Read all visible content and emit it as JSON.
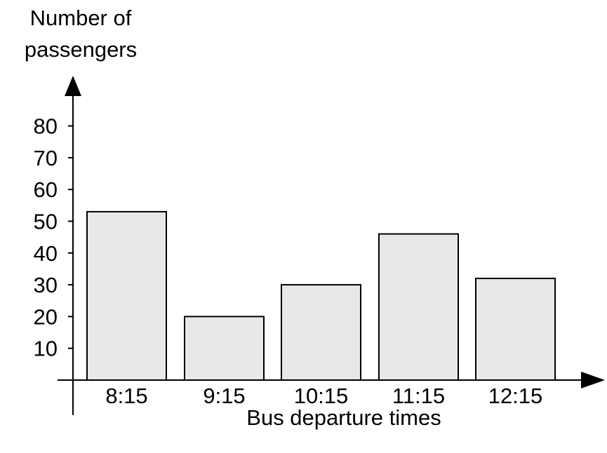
{
  "chart_data": {
    "type": "bar",
    "ylabel": [
      "Number of",
      "passengers"
    ],
    "xlabel": "Bus departure times",
    "categories": [
      "8:15",
      "9:15",
      "10:15",
      "11:15",
      "12:15"
    ],
    "values": [
      53,
      20,
      30,
      46,
      32
    ],
    "yticks": [
      10,
      20,
      30,
      40,
      50,
      60,
      70,
      80
    ],
    "ylim": [
      0,
      80
    ],
    "grid": false,
    "bar_fill": "#e8e8e8",
    "bar_stroke": "#000000"
  }
}
